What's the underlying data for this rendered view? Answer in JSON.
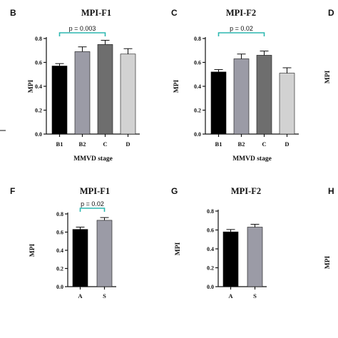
{
  "chart_data": [
    {
      "panel": "B",
      "type": "bar",
      "title": "MPI-F1",
      "xlabel": "MMVD stage",
      "ylabel": "MPI",
      "categories": [
        "B1",
        "B2",
        "C",
        "D"
      ],
      "values": [
        0.57,
        0.69,
        0.75,
        0.67
      ],
      "errors": [
        0.02,
        0.04,
        0.035,
        0.045
      ],
      "colors": [
        "#000000",
        "#9b9ba6",
        "#6e6e6e",
        "#d2d2d2"
      ],
      "ylim": [
        0,
        0.8
      ],
      "yticks": [
        "0.0",
        "0.2",
        "0.4",
        "0.6",
        "0.8"
      ],
      "annotation": {
        "text": "p = 0.003",
        "from": "B1",
        "to": "C"
      }
    },
    {
      "panel": "C",
      "type": "bar",
      "title": "MPI-F2",
      "xlabel": "MMVD stage",
      "ylabel": "MPI",
      "categories": [
        "B1",
        "B2",
        "C",
        "D"
      ],
      "values": [
        0.52,
        0.63,
        0.66,
        0.51
      ],
      "errors": [
        0.02,
        0.04,
        0.035,
        0.045
      ],
      "colors": [
        "#000000",
        "#9b9ba6",
        "#6e6e6e",
        "#d2d2d2"
      ],
      "ylim": [
        0,
        0.8
      ],
      "yticks": [
        "0.0",
        "0.2",
        "0.4",
        "0.6",
        "0.8"
      ],
      "annotation": {
        "text": "p = 0.02",
        "from": "B1",
        "to": "C"
      }
    },
    {
      "panel": "F",
      "type": "bar",
      "title": "MPI-F1",
      "xlabel": "",
      "ylabel": "MPI",
      "categories": [
        "A",
        "S"
      ],
      "values": [
        0.63,
        0.73
      ],
      "errors": [
        0.025,
        0.03
      ],
      "colors": [
        "#000000",
        "#9b9ba6"
      ],
      "ylim": [
        0,
        0.8
      ],
      "yticks": [
        "0.0",
        "0.2",
        "0.4",
        "0.6",
        "0.8"
      ],
      "annotation": {
        "text": "p = 0.02",
        "from": "A",
        "to": "S"
      }
    },
    {
      "panel": "G",
      "type": "bar",
      "title": "MPI-F2",
      "xlabel": "",
      "ylabel": "MPI",
      "categories": [
        "A",
        "S"
      ],
      "values": [
        0.58,
        0.63
      ],
      "errors": [
        0.025,
        0.03
      ],
      "colors": [
        "#000000",
        "#9b9ba6"
      ],
      "ylim": [
        0,
        0.8
      ],
      "yticks": [
        "0.0",
        "0.2",
        "0.4",
        "0.6",
        "0.8"
      ],
      "annotation": null
    }
  ],
  "partial_panels": [
    {
      "panel": "D",
      "ylabel": "MPI"
    },
    {
      "panel": "H",
      "ylabel": "MPI"
    }
  ]
}
